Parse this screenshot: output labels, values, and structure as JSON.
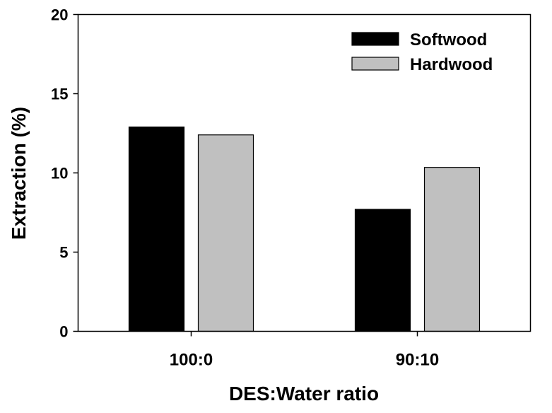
{
  "chart_data": {
    "type": "bar",
    "title": "",
    "xlabel": "DES:Water ratio",
    "ylabel": "Extraction (%)",
    "ylim": [
      0,
      20
    ],
    "yticks": [
      0,
      5,
      10,
      15,
      20
    ],
    "grid": false,
    "legend_position": "top-right",
    "categories": [
      "100:0",
      "90:10"
    ],
    "series": [
      {
        "name": "Softwood",
        "color": "#000000",
        "values": [
          12.9,
          7.7
        ]
      },
      {
        "name": "Hardwood",
        "color": "#c0c0c0",
        "values": [
          12.4,
          10.35
        ]
      }
    ]
  }
}
